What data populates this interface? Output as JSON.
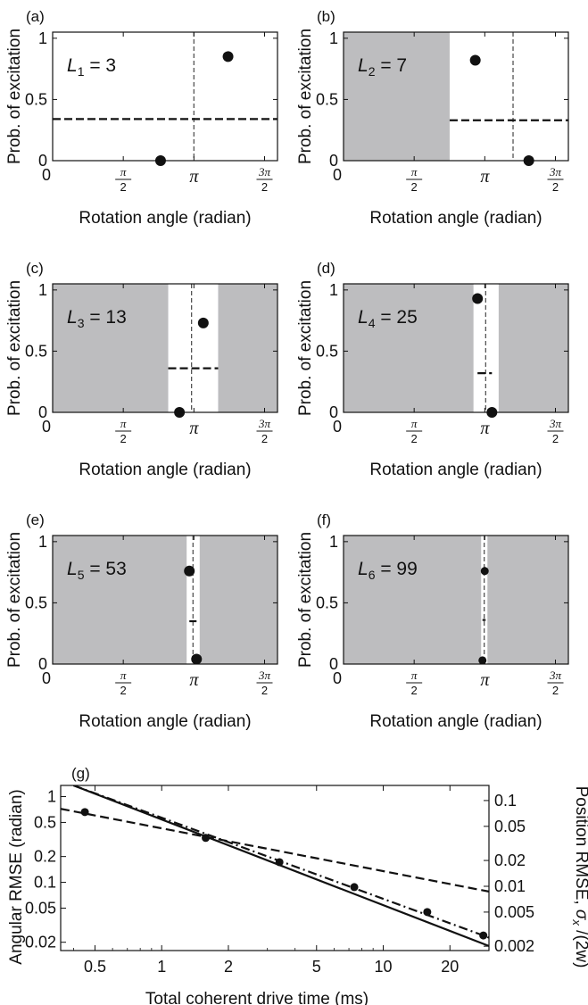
{
  "chart_data": [
    {
      "panel": "(a)",
      "type": "scatter",
      "annotation": "L₁ = 3",
      "annotation_main": "L",
      "annotation_sub": "1",
      "annotation_value": " = 3",
      "xlabel": "Rotation angle (radian)",
      "ylabel": "Prob. of excitation",
      "xlim": [
        0,
        5.0
      ],
      "ylim": [
        0,
        1.05
      ],
      "xticks": [
        {
          "v": 0,
          "label": "0"
        },
        {
          "v": 1.5708,
          "num": "π",
          "den": "2"
        },
        {
          "v": 3.1416,
          "label": "π"
        },
        {
          "v": 4.7124,
          "num": "3π",
          "den": "2"
        }
      ],
      "yticks": [
        {
          "v": 0,
          "label": "0"
        },
        {
          "v": 0.5,
          "label": "0.5"
        },
        {
          "v": 1,
          "label": "1"
        }
      ],
      "shaded_regions": [],
      "points": [
        {
          "x": 2.4,
          "y": 0.0
        },
        {
          "x": 3.9,
          "y": 0.85
        }
      ],
      "estimate_line": {
        "x0": 0.0,
        "x1": 5.0,
        "y": 0.34
      },
      "vertical_line_x": 3.14
    },
    {
      "panel": "(b)",
      "type": "scatter",
      "annotation": "L₂ = 7",
      "annotation_main": "L",
      "annotation_sub": "2",
      "annotation_value": " = 7",
      "xlabel": "Rotation angle (radian)",
      "ylabel": "Prob. of excitation",
      "xlim": [
        0,
        5.0
      ],
      "ylim": [
        0,
        1.05
      ],
      "xticks": [
        {
          "v": 0,
          "label": "0"
        },
        {
          "v": 1.5708,
          "num": "π",
          "den": "2"
        },
        {
          "v": 3.1416,
          "label": "π"
        },
        {
          "v": 4.7124,
          "num": "3π",
          "den": "2"
        }
      ],
      "yticks": [
        {
          "v": 0,
          "label": "0"
        },
        {
          "v": 0.5,
          "label": "0.5"
        },
        {
          "v": 1,
          "label": "1"
        }
      ],
      "shaded_regions": [
        [
          0,
          2.36
        ]
      ],
      "points": [
        {
          "x": 2.93,
          "y": 0.82
        },
        {
          "x": 4.12,
          "y": 0.0
        }
      ],
      "estimate_line": {
        "x0": 2.36,
        "x1": 5.0,
        "y": 0.33
      },
      "vertical_line_x": 3.77
    },
    {
      "panel": "(c)",
      "type": "scatter",
      "annotation": "L₃ = 13",
      "annotation_main": "L",
      "annotation_sub": "3",
      "annotation_value": " = 13",
      "xlabel": "Rotation angle (radian)",
      "ylabel": "Prob. of excitation",
      "xlim": [
        0,
        5.0
      ],
      "ylim": [
        0,
        1.05
      ],
      "xticks": [
        {
          "v": 0,
          "label": "0"
        },
        {
          "v": 1.5708,
          "num": "π",
          "den": "2"
        },
        {
          "v": 3.1416,
          "label": "π"
        },
        {
          "v": 4.7124,
          "num": "3π",
          "den": "2"
        }
      ],
      "yticks": [
        {
          "v": 0,
          "label": "0"
        },
        {
          "v": 0.5,
          "label": "0.5"
        },
        {
          "v": 1,
          "label": "1"
        }
      ],
      "shaded_regions": [
        [
          0,
          2.57
        ],
        [
          3.68,
          5.0
        ]
      ],
      "points": [
        {
          "x": 2.82,
          "y": 0.0
        },
        {
          "x": 3.35,
          "y": 0.73
        }
      ],
      "estimate_line": {
        "x0": 2.57,
        "x1": 3.68,
        "y": 0.36
      },
      "vertical_line_x": 3.09
    },
    {
      "panel": "(d)",
      "type": "scatter",
      "annotation": "L₄ = 25",
      "annotation_main": "L",
      "annotation_sub": "4",
      "annotation_value": " = 25",
      "xlabel": "Rotation angle (radian)",
      "ylabel": "Prob. of excitation",
      "xlim": [
        0,
        5.0
      ],
      "ylim": [
        0,
        1.05
      ],
      "xticks": [
        {
          "v": 0,
          "label": "0"
        },
        {
          "v": 1.5708,
          "num": "π",
          "den": "2"
        },
        {
          "v": 3.1416,
          "label": "π"
        },
        {
          "v": 4.7124,
          "num": "3π",
          "den": "2"
        }
      ],
      "yticks": [
        {
          "v": 0,
          "label": "0"
        },
        {
          "v": 0.5,
          "label": "0.5"
        },
        {
          "v": 1,
          "label": "1"
        }
      ],
      "shaded_regions": [
        [
          0,
          2.89
        ],
        [
          3.45,
          5.0
        ]
      ],
      "points": [
        {
          "x": 2.98,
          "y": 0.93
        },
        {
          "x": 3.3,
          "y": 0.0
        }
      ],
      "estimate_line": {
        "x0": 2.98,
        "x1": 3.3,
        "y": 0.32
      },
      "vertical_line_x": 3.16
    },
    {
      "panel": "(e)",
      "type": "scatter",
      "annotation": "L₅ = 53",
      "annotation_main": "L",
      "annotation_sub": "5",
      "annotation_value": " = 53",
      "xlabel": "Rotation angle (radian)",
      "ylabel": "Prob. of excitation",
      "xlim": [
        0,
        5.0
      ],
      "ylim": [
        0,
        1.05
      ],
      "xticks": [
        {
          "v": 0,
          "label": "0"
        },
        {
          "v": 1.5708,
          "num": "π",
          "den": "2"
        },
        {
          "v": 3.1416,
          "label": "π"
        },
        {
          "v": 4.7124,
          "num": "3π",
          "den": "2"
        }
      ],
      "yticks": [
        {
          "v": 0,
          "label": "0"
        },
        {
          "v": 0.5,
          "label": "0.5"
        },
        {
          "v": 1,
          "label": "1"
        }
      ],
      "shaded_regions": [
        [
          0,
          2.98
        ],
        [
          3.27,
          5.0
        ]
      ],
      "points": [
        {
          "x": 3.04,
          "y": 0.76
        },
        {
          "x": 3.2,
          "y": 0.04
        }
      ],
      "estimate_line": {
        "x0": 3.04,
        "x1": 3.2,
        "y": 0.35
      },
      "vertical_line_x": 3.12
    },
    {
      "panel": "(f)",
      "type": "scatter",
      "annotation": "L₆ = 99",
      "annotation_main": "L",
      "annotation_sub": "6",
      "annotation_value": " = 99",
      "xlabel": "Rotation angle (radian)",
      "ylabel": "Prob. of excitation",
      "xlim": [
        0,
        5.0
      ],
      "ylim": [
        0,
        1.05
      ],
      "xticks": [
        {
          "v": 0,
          "label": "0"
        },
        {
          "v": 1.5708,
          "num": "π",
          "den": "2"
        },
        {
          "v": 3.1416,
          "label": "π"
        },
        {
          "v": 4.7124,
          "num": "3π",
          "den": "2"
        }
      ],
      "yticks": [
        {
          "v": 0,
          "label": "0"
        },
        {
          "v": 0.5,
          "label": "0.5"
        },
        {
          "v": 1,
          "label": "1"
        }
      ],
      "shaded_regions": [
        [
          0,
          3.06
        ],
        [
          3.2,
          5.0
        ]
      ],
      "points": [
        {
          "x": 3.09,
          "y": 0.03
        },
        {
          "x": 3.14,
          "y": 0.76
        }
      ],
      "estimate_line": {
        "x0": 3.09,
        "x1": 3.16,
        "y": 0.36
      },
      "vertical_line_x": 3.13
    },
    {
      "panel": "(g)",
      "type": "line",
      "log_x": true,
      "log_y": true,
      "xlabel": "Total coherent drive time (ms)",
      "ylabel": "Angular RMSE (radian)",
      "y2label_main": "Position RMSE, ",
      "y2label_sigma": "σ",
      "y2label_sub": "x",
      "y2label_tail": " /(2w)",
      "xlim": [
        0.35,
        30
      ],
      "ylim": [
        0.016,
        1.35
      ],
      "xticks": [
        {
          "v": 0.5,
          "label": "0.5"
        },
        {
          "v": 1,
          "label": "1"
        },
        {
          "v": 2,
          "label": "2"
        },
        {
          "v": 5,
          "label": "5"
        },
        {
          "v": 10,
          "label": "10"
        },
        {
          "v": 20,
          "label": "20"
        }
      ],
      "yticks": [
        {
          "v": 0.02,
          "label": "0.02"
        },
        {
          "v": 0.05,
          "label": "0.05"
        },
        {
          "v": 0.1,
          "label": "0.1"
        },
        {
          "v": 0.2,
          "label": "0.2"
        },
        {
          "v": 0.5,
          "label": "0.5"
        },
        {
          "v": 1,
          "label": "1"
        }
      ],
      "y2lim": [
        0.00178,
        0.15
      ],
      "y2ticks": [
        {
          "v": 0.002,
          "label": "0.002"
        },
        {
          "v": 0.005,
          "label": "0.005"
        },
        {
          "v": 0.01,
          "label": "0.01"
        },
        {
          "v": 0.02,
          "label": "0.02"
        },
        {
          "v": 0.05,
          "label": "0.05"
        },
        {
          "v": 0.1,
          "label": "0.1"
        }
      ],
      "points": [
        {
          "x": 0.45,
          "y": 0.66
        },
        {
          "x": 1.58,
          "y": 0.33
        },
        {
          "x": 3.4,
          "y": 0.172
        },
        {
          "x": 7.4,
          "y": 0.088
        },
        {
          "x": 15.8,
          "y": 0.045
        },
        {
          "x": 28.3,
          "y": 0.024
        }
      ],
      "series": [
        {
          "style": "solid",
          "x": [
            0.4,
            30
          ],
          "y": [
            1.35,
            0.0181
          ]
        },
        {
          "style": "dashdot",
          "x": [
            0.4,
            28.3,
            30
          ],
          "y": [
            1.35,
            0.024,
            0.0226
          ]
        },
        {
          "style": "dashed",
          "x": [
            0.35,
            30
          ],
          "y": [
            0.72,
            0.078
          ]
        }
      ]
    }
  ]
}
